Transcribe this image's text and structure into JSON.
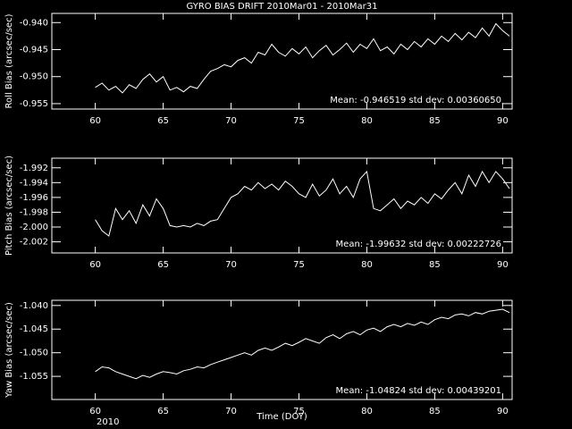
{
  "chart_data": [
    {
      "type": "line",
      "title": "GYRO BIAS DRIFT 2010Mar01 - 2010Mar31",
      "y_label": "Roll Bias (arcsec/sec)",
      "annotation": "Mean: -0.946519 std dev: 0.00360650",
      "color": "#ffffff",
      "xlim": [
        56.8,
        90.7
      ],
      "xticks": [
        60,
        65,
        70,
        75,
        80,
        85,
        90
      ],
      "ylim": [
        -0.956,
        -0.9383
      ],
      "yticks": [
        {
          "value": -0.955,
          "label": "-0.955"
        },
        {
          "value": -0.95,
          "label": "-0.950"
        },
        {
          "value": -0.945,
          "label": "-0.945"
        },
        {
          "value": -0.94,
          "label": "-0.940"
        }
      ],
      "x": [
        60.0,
        60.5,
        61.0,
        61.5,
        62.0,
        62.5,
        63.0,
        63.5,
        64.0,
        64.5,
        65.0,
        65.5,
        66.0,
        66.5,
        67.0,
        67.5,
        68.0,
        68.5,
        69.0,
        69.5,
        70.0,
        70.5,
        71.0,
        71.5,
        72.0,
        72.5,
        73.0,
        73.5,
        74.0,
        74.5,
        75.0,
        75.5,
        76.0,
        76.5,
        77.0,
        77.5,
        78.0,
        78.5,
        79.0,
        79.5,
        80.0,
        80.5,
        81.0,
        81.5,
        82.0,
        82.5,
        83.0,
        83.5,
        84.0,
        84.5,
        85.0,
        85.5,
        86.0,
        86.5,
        87.0,
        87.5,
        88.0,
        88.5,
        89.0,
        89.5,
        90.0,
        90.5
      ],
      "values": [
        -0.952,
        -0.9512,
        -0.9525,
        -0.9518,
        -0.953,
        -0.9515,
        -0.9522,
        -0.9505,
        -0.9495,
        -0.951,
        -0.95,
        -0.9525,
        -0.952,
        -0.9528,
        -0.9518,
        -0.9522,
        -0.9505,
        -0.949,
        -0.9485,
        -0.9478,
        -0.9482,
        -0.947,
        -0.9465,
        -0.9475,
        -0.9455,
        -0.946,
        -0.944,
        -0.9455,
        -0.9462,
        -0.9448,
        -0.9458,
        -0.9445,
        -0.9465,
        -0.9452,
        -0.9442,
        -0.946,
        -0.945,
        -0.9438,
        -0.9455,
        -0.944,
        -0.9448,
        -0.943,
        -0.9452,
        -0.9445,
        -0.9458,
        -0.944,
        -0.945,
        -0.9435,
        -0.9445,
        -0.943,
        -0.944,
        -0.9425,
        -0.9435,
        -0.942,
        -0.9432,
        -0.9418,
        -0.9428,
        -0.941,
        -0.9425,
        -0.9402,
        -0.9415,
        -0.9425
      ]
    },
    {
      "type": "line",
      "y_label": "Pitch Bias (arcsec/sec)",
      "annotation": "Mean: -1.99632 std dev: 0.00222726",
      "color": "#ffffff",
      "xlim": [
        56.8,
        90.7
      ],
      "xticks": [
        60,
        65,
        70,
        75,
        80,
        85,
        90
      ],
      "ylim": [
        -2.0035,
        -1.9907
      ],
      "yticks": [
        {
          "value": -2.002,
          "label": "-2.002"
        },
        {
          "value": -2.0,
          "label": "-2.000"
        },
        {
          "value": -1.998,
          "label": "-1.998"
        },
        {
          "value": -1.996,
          "label": "-1.996"
        },
        {
          "value": -1.994,
          "label": "-1.994"
        },
        {
          "value": -1.992,
          "label": "-1.992"
        }
      ],
      "x": [
        60.0,
        60.5,
        61.0,
        61.5,
        62.0,
        62.5,
        63.0,
        63.5,
        64.0,
        64.5,
        65.0,
        65.5,
        66.0,
        66.5,
        67.0,
        67.5,
        68.0,
        68.5,
        69.0,
        69.5,
        70.0,
        70.5,
        71.0,
        71.5,
        72.0,
        72.5,
        73.0,
        73.5,
        74.0,
        74.5,
        75.0,
        75.5,
        76.0,
        76.5,
        77.0,
        77.5,
        78.0,
        78.5,
        79.0,
        79.5,
        80.0,
        80.5,
        81.0,
        81.5,
        82.0,
        82.5,
        83.0,
        83.5,
        84.0,
        84.5,
        85.0,
        85.5,
        86.0,
        86.5,
        87.0,
        87.5,
        88.0,
        88.5,
        89.0,
        89.5,
        90.0,
        90.5
      ],
      "values": [
        -1.999,
        -2.0005,
        -2.0012,
        -1.9975,
        -1.999,
        -1.9978,
        -1.9995,
        -1.997,
        -1.9985,
        -1.9962,
        -1.9975,
        -1.9998,
        -2.0,
        -1.9998,
        -2.0,
        -1.9995,
        -1.9998,
        -1.9992,
        -1.999,
        -1.9975,
        -1.996,
        -1.9955,
        -1.9945,
        -1.995,
        -1.994,
        -1.9948,
        -1.9942,
        -1.995,
        -1.9938,
        -1.9945,
        -1.9955,
        -1.996,
        -1.9942,
        -1.9958,
        -1.995,
        -1.9935,
        -1.9955,
        -1.9945,
        -1.996,
        -1.9935,
        -1.9925,
        -1.9975,
        -1.9978,
        -1.997,
        -1.9962,
        -1.9975,
        -1.9965,
        -1.997,
        -1.996,
        -1.9968,
        -1.9955,
        -1.9962,
        -1.995,
        -1.994,
        -1.9955,
        -1.993,
        -1.9945,
        -1.9925,
        -1.994,
        -1.9925,
        -1.9935,
        -1.9948
      ]
    },
    {
      "type": "line",
      "y_label": "Yaw Bias (arcsec/sec)",
      "x_label": "Time (DOY)",
      "year_label": "2010",
      "annotation": "Mean: -1.04824 std dev: 0.00439201",
      "color": "#ffffff",
      "xlim": [
        56.8,
        90.7
      ],
      "xticks": [
        60,
        65,
        70,
        75,
        80,
        85,
        90
      ],
      "ylim": [
        -1.0599,
        -1.0389
      ],
      "yticks": [
        {
          "value": -1.055,
          "label": "-1.055"
        },
        {
          "value": -1.05,
          "label": "-1.050"
        },
        {
          "value": -1.045,
          "label": "-1.045"
        },
        {
          "value": -1.04,
          "label": "-1.040"
        }
      ],
      "x": [
        60.0,
        60.5,
        61.0,
        61.5,
        62.0,
        62.5,
        63.0,
        63.5,
        64.0,
        64.5,
        65.0,
        65.5,
        66.0,
        66.5,
        67.0,
        67.5,
        68.0,
        68.5,
        69.0,
        69.5,
        70.0,
        70.5,
        71.0,
        71.5,
        72.0,
        72.5,
        73.0,
        73.5,
        74.0,
        74.5,
        75.0,
        75.5,
        76.0,
        76.5,
        77.0,
        77.5,
        78.0,
        78.5,
        79.0,
        79.5,
        80.0,
        80.5,
        81.0,
        81.5,
        82.0,
        82.5,
        83.0,
        83.5,
        84.0,
        84.5,
        85.0,
        85.5,
        86.0,
        86.5,
        87.0,
        87.5,
        88.0,
        88.5,
        89.0,
        89.5,
        90.0,
        90.5
      ],
      "values": [
        -1.054,
        -1.053,
        -1.0532,
        -1.054,
        -1.0545,
        -1.055,
        -1.0555,
        -1.0548,
        -1.0552,
        -1.0545,
        -1.054,
        -1.0542,
        -1.0545,
        -1.0538,
        -1.0535,
        -1.053,
        -1.0532,
        -1.0525,
        -1.052,
        -1.0515,
        -1.051,
        -1.0505,
        -1.05,
        -1.0505,
        -1.0495,
        -1.049,
        -1.0495,
        -1.0488,
        -1.048,
        -1.0485,
        -1.0478,
        -1.047,
        -1.0475,
        -1.048,
        -1.0468,
        -1.0462,
        -1.047,
        -1.046,
        -1.0455,
        -1.0462,
        -1.0452,
        -1.0448,
        -1.0455,
        -1.0445,
        -1.044,
        -1.0445,
        -1.0438,
        -1.0442,
        -1.0435,
        -1.044,
        -1.043,
        -1.0425,
        -1.0428,
        -1.042,
        -1.0418,
        -1.0422,
        -1.0415,
        -1.0418,
        -1.0412,
        -1.041,
        -1.0408,
        -1.0415
      ]
    }
  ]
}
